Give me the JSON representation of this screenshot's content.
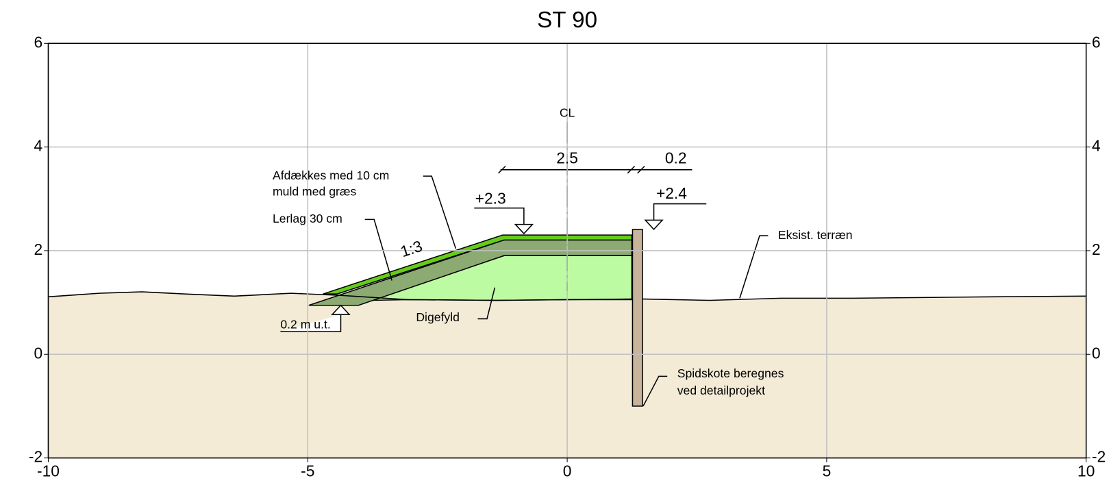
{
  "chart_data": {
    "type": "cross-section",
    "title": "ST 90",
    "xlim": [
      -10,
      10
    ],
    "xticks": [
      -10,
      -5,
      0,
      5,
      10
    ],
    "ylim": [
      -2,
      6
    ],
    "yticks": [
      -2,
      0,
      2,
      4,
      6
    ],
    "y2lim": [
      -2,
      6
    ],
    "y2ticks": [
      -2,
      0,
      2,
      4,
      6
    ],
    "grid": true,
    "annotations": [
      "CL",
      "2.5",
      "0.2",
      "+2.3",
      "+2.4",
      "Afdækkes med 10 cm",
      "muld med græs",
      "Lerlag 30 cm",
      "1:3",
      "0.2 m u.t.",
      "Digefyld",
      "Eksist. terræn",
      "Spidskote beregnes",
      "ved detailprojekt"
    ]
  }
}
